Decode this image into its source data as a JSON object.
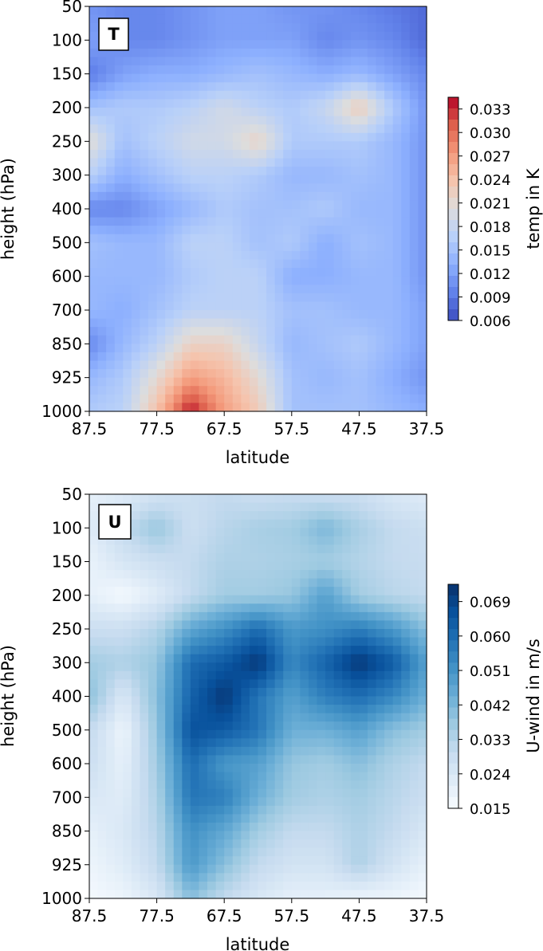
{
  "chart_data": [
    {
      "type": "heatmap",
      "panel_label": "T",
      "xlabel": "latitude",
      "ylabel": "height (hPa)",
      "x_ticks": [
        "87.5",
        "77.5",
        "67.5",
        "57.5",
        "47.5",
        "37.5"
      ],
      "y_ticks": [
        "50",
        "100",
        "150",
        "200",
        "250",
        "300",
        "400",
        "500",
        "600",
        "700",
        "850",
        "925",
        "1000"
      ],
      "x": [
        87.5,
        82.5,
        77.5,
        72.5,
        67.5,
        62.5,
        57.5,
        52.5,
        47.5,
        42.5,
        37.5
      ],
      "y": [
        50,
        100,
        150,
        200,
        250,
        300,
        400,
        500,
        600,
        700,
        850,
        925,
        1000
      ],
      "z": [
        [
          0.011,
          0.01,
          0.01,
          0.011,
          0.012,
          0.012,
          0.011,
          0.011,
          0.01,
          0.009,
          0.008
        ],
        [
          0.012,
          0.01,
          0.01,
          0.011,
          0.012,
          0.012,
          0.012,
          0.01,
          0.011,
          0.01,
          0.008
        ],
        [
          0.009,
          0.012,
          0.013,
          0.013,
          0.014,
          0.015,
          0.014,
          0.013,
          0.014,
          0.012,
          0.01
        ],
        [
          0.015,
          0.016,
          0.016,
          0.017,
          0.019,
          0.017,
          0.016,
          0.018,
          0.023,
          0.016,
          0.011
        ],
        [
          0.021,
          0.015,
          0.017,
          0.019,
          0.019,
          0.022,
          0.016,
          0.016,
          0.016,
          0.014,
          0.011
        ],
        [
          0.017,
          0.013,
          0.015,
          0.017,
          0.017,
          0.016,
          0.014,
          0.014,
          0.015,
          0.014,
          0.011
        ],
        [
          0.01,
          0.01,
          0.012,
          0.014,
          0.016,
          0.015,
          0.015,
          0.016,
          0.014,
          0.014,
          0.011
        ],
        [
          0.015,
          0.014,
          0.014,
          0.017,
          0.017,
          0.015,
          0.016,
          0.013,
          0.015,
          0.014,
          0.011
        ],
        [
          0.014,
          0.014,
          0.014,
          0.016,
          0.017,
          0.017,
          0.013,
          0.013,
          0.014,
          0.014,
          0.011
        ],
        [
          0.014,
          0.013,
          0.015,
          0.017,
          0.017,
          0.017,
          0.015,
          0.015,
          0.014,
          0.014,
          0.012
        ],
        [
          0.01,
          0.014,
          0.017,
          0.022,
          0.022,
          0.018,
          0.014,
          0.015,
          0.016,
          0.014,
          0.012
        ],
        [
          0.014,
          0.016,
          0.021,
          0.027,
          0.025,
          0.021,
          0.015,
          0.014,
          0.015,
          0.013,
          0.011
        ],
        [
          0.016,
          0.017,
          0.024,
          0.034,
          0.027,
          0.023,
          0.015,
          0.015,
          0.015,
          0.014,
          0.013
        ]
      ],
      "colorbar": {
        "label": "temp in K",
        "ticks": [
          "0.006",
          "0.009",
          "0.012",
          "0.015",
          "0.018",
          "0.021",
          "0.024",
          "0.027",
          "0.030",
          "0.033"
        ],
        "vmin": 0.006,
        "vmax": 0.0345,
        "colormap": "coolwarm"
      }
    },
    {
      "type": "heatmap",
      "panel_label": "U",
      "xlabel": "latitude",
      "ylabel": "height (hPa)",
      "x_ticks": [
        "87.5",
        "77.5",
        "67.5",
        "57.5",
        "47.5",
        "37.5"
      ],
      "y_ticks": [
        "50",
        "100",
        "150",
        "200",
        "250",
        "300",
        "400",
        "500",
        "600",
        "700",
        "850",
        "925",
        "1000"
      ],
      "x": [
        87.5,
        82.5,
        77.5,
        72.5,
        67.5,
        62.5,
        57.5,
        52.5,
        47.5,
        42.5,
        37.5
      ],
      "y": [
        50,
        100,
        150,
        200,
        250,
        300,
        400,
        500,
        600,
        700,
        850,
        925,
        1000
      ],
      "z": [
        [
          0.02,
          0.022,
          0.026,
          0.028,
          0.03,
          0.028,
          0.029,
          0.028,
          0.028,
          0.024,
          0.022
        ],
        [
          0.022,
          0.03,
          0.038,
          0.028,
          0.032,
          0.035,
          0.036,
          0.042,
          0.035,
          0.03,
          0.028
        ],
        [
          0.019,
          0.025,
          0.028,
          0.03,
          0.034,
          0.034,
          0.035,
          0.036,
          0.033,
          0.03,
          0.029
        ],
        [
          0.02,
          0.016,
          0.022,
          0.03,
          0.036,
          0.036,
          0.038,
          0.048,
          0.036,
          0.032,
          0.03
        ],
        [
          0.028,
          0.028,
          0.033,
          0.046,
          0.052,
          0.06,
          0.05,
          0.052,
          0.056,
          0.05,
          0.04
        ],
        [
          0.036,
          0.034,
          0.038,
          0.06,
          0.064,
          0.072,
          0.054,
          0.062,
          0.072,
          0.064,
          0.048
        ],
        [
          0.04,
          0.024,
          0.04,
          0.062,
          0.072,
          0.058,
          0.048,
          0.056,
          0.06,
          0.054,
          0.044
        ],
        [
          0.03,
          0.018,
          0.038,
          0.066,
          0.064,
          0.058,
          0.044,
          0.044,
          0.048,
          0.04,
          0.036
        ],
        [
          0.028,
          0.02,
          0.036,
          0.06,
          0.05,
          0.048,
          0.038,
          0.036,
          0.04,
          0.034,
          0.03
        ],
        [
          0.024,
          0.022,
          0.034,
          0.058,
          0.056,
          0.044,
          0.036,
          0.034,
          0.036,
          0.032,
          0.028
        ],
        [
          0.02,
          0.024,
          0.032,
          0.052,
          0.046,
          0.036,
          0.03,
          0.03,
          0.034,
          0.03,
          0.024
        ],
        [
          0.018,
          0.022,
          0.03,
          0.05,
          0.04,
          0.03,
          0.026,
          0.026,
          0.034,
          0.026,
          0.02
        ],
        [
          0.016,
          0.018,
          0.024,
          0.04,
          0.03,
          0.024,
          0.02,
          0.02,
          0.018,
          0.018,
          0.016
        ]
      ],
      "colorbar": {
        "label": "U-wind in m/s",
        "ticks": [
          "0.015",
          "0.024",
          "0.033",
          "0.042",
          "0.051",
          "0.060",
          "0.069"
        ],
        "vmin": 0.015,
        "vmax": 0.0735,
        "colormap": "Blues"
      }
    }
  ]
}
